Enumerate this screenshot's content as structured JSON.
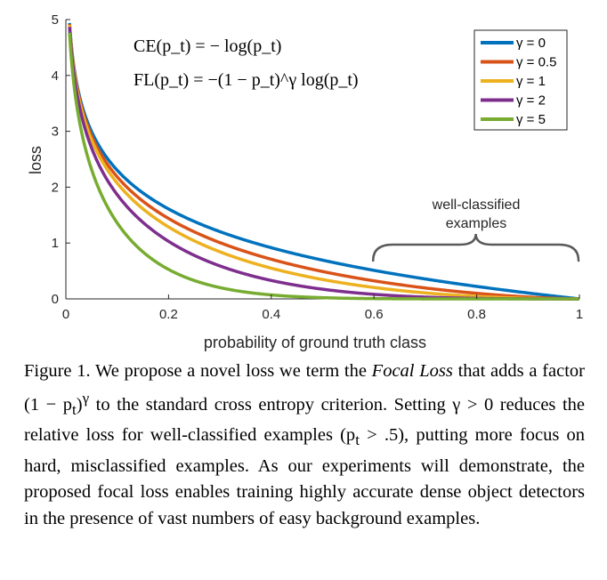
{
  "chart_data": {
    "type": "line",
    "xlabel": "probability of ground truth class",
    "ylabel": "loss",
    "xlim": [
      0,
      1
    ],
    "ylim": [
      0,
      5
    ],
    "xticks": [
      "0",
      "0.2",
      "0.4",
      "0.6",
      "0.8",
      "1"
    ],
    "xtick_values": [
      0,
      0.2,
      0.4,
      0.6,
      0.8,
      1
    ],
    "yticks": [
      "0",
      "1",
      "2",
      "3",
      "4",
      "5"
    ],
    "ytick_values": [
      0,
      1,
      2,
      3,
      4,
      5
    ],
    "legend_position": "top-right",
    "formula": [
      "CE(p_t) = − log(p_t)",
      "FL(p_t) = −(1 − p_t)^γ log(p_t)"
    ],
    "annotation": {
      "text_line1": "well-classified",
      "text_line2": "examples",
      "range": [
        0.6,
        1.0
      ]
    },
    "series": [
      {
        "name": "γ = 0",
        "gamma": 0,
        "color": "#0072bd"
      },
      {
        "name": "γ = 0.5",
        "gamma": 0.5,
        "color": "#d95319"
      },
      {
        "name": "γ = 1",
        "gamma": 1,
        "color": "#edb120"
      },
      {
        "name": "γ = 2",
        "gamma": 2,
        "color": "#7e2f8e"
      },
      {
        "name": "γ = 5",
        "gamma": 5,
        "color": "#77ac30"
      }
    ]
  },
  "caption": {
    "p1": "Figure 1. We propose a novel loss we term the ",
    "p2": "Focal Loss",
    "p3": " that adds a factor (1 − p",
    "p3sub": "t",
    "p3b": ")",
    "p3sup": "γ",
    "p4": " to the standard cross entropy criterion. Setting γ > 0 reduces the relative loss for well-classified examples (p",
    "p4sub": "t",
    "p5": " > .5), putting more focus on hard, misclassified examples. As our experiments will demonstrate, the proposed focal loss enables training highly accurate dense object detectors in the presence of vast numbers of easy background examples."
  }
}
